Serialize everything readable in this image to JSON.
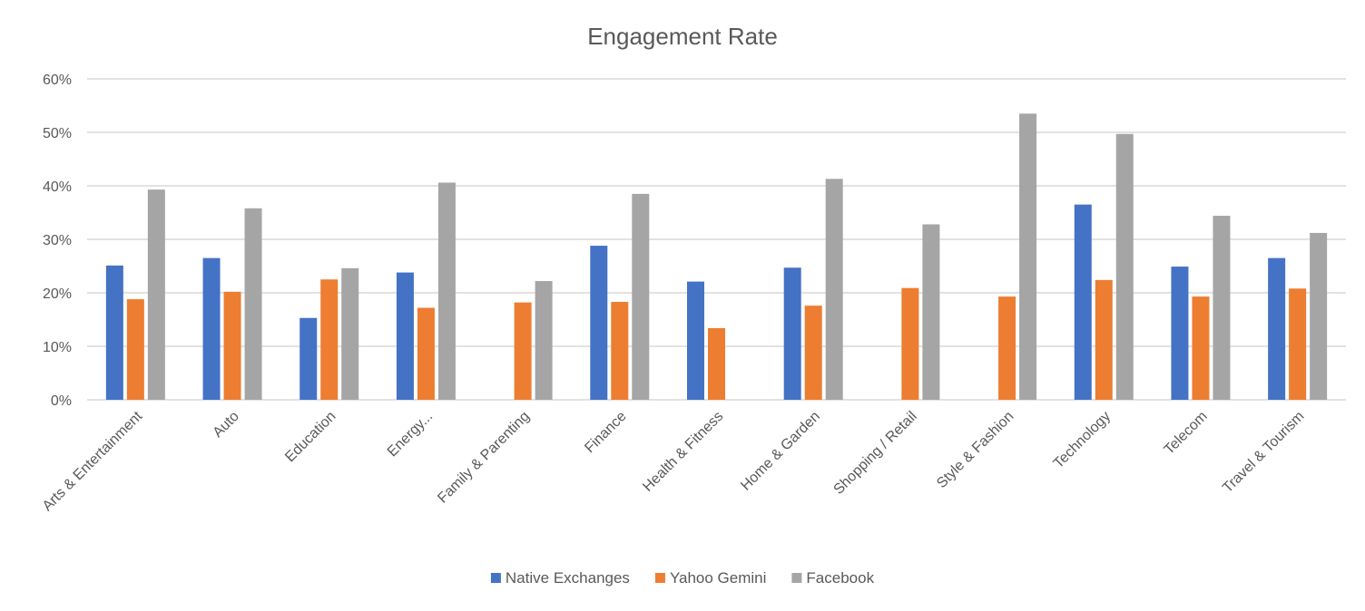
{
  "chart_data": {
    "type": "bar",
    "title": "Engagement Rate",
    "xlabel": "",
    "ylabel": "",
    "ylim": [
      0,
      0.6
    ],
    "yticks": [
      {
        "value": 0,
        "label": "0%"
      },
      {
        "value": 0.1,
        "label": "10%"
      },
      {
        "value": 0.2,
        "label": "20%"
      },
      {
        "value": 0.3,
        "label": "30%"
      },
      {
        "value": 0.4,
        "label": "40%"
      },
      {
        "value": 0.5,
        "label": "50%"
      },
      {
        "value": 0.6,
        "label": "60%"
      }
    ],
    "grid": true,
    "legend_position": "bottom",
    "categories": [
      "Arts & Entertainment",
      "Auto",
      "Education",
      "Energy...",
      "Family & Parenting",
      "Finance",
      "Health & Fitness",
      "Home & Garden",
      "Shopping / Retail",
      "Style & Fashion",
      "Technology",
      "Telecom",
      "Travel & Tourism"
    ],
    "series": [
      {
        "name": "Native Exchanges",
        "color": "#4472c4",
        "values": [
          0.251,
          0.265,
          0.153,
          0.238,
          null,
          0.288,
          0.221,
          0.247,
          null,
          null,
          0.365,
          0.249,
          0.265
        ]
      },
      {
        "name": "Yahoo Gemini",
        "color": "#ed7d31",
        "values": [
          0.188,
          0.202,
          0.225,
          0.172,
          0.182,
          0.183,
          0.134,
          0.176,
          0.209,
          0.193,
          0.224,
          0.193,
          0.208
        ]
      },
      {
        "name": "Facebook",
        "color": "#a5a5a5",
        "values": [
          0.393,
          0.358,
          0.246,
          0.406,
          0.222,
          0.385,
          null,
          0.413,
          0.328,
          0.535,
          0.497,
          0.344,
          0.312
        ]
      }
    ]
  }
}
